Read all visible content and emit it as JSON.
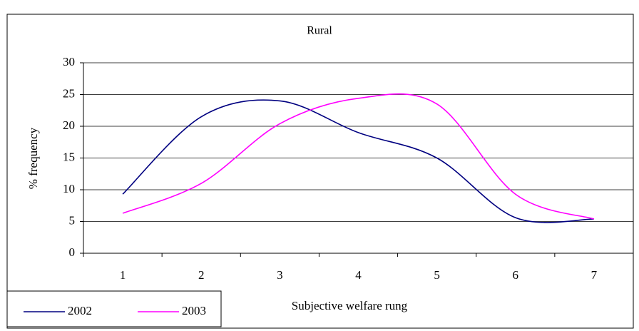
{
  "chart_data": {
    "type": "line",
    "title": "Rural",
    "x_label": "Subjective welfare rung",
    "y_label": "% frequency",
    "categories": [
      "1",
      "2",
      "3",
      "4",
      "5",
      "6",
      "7"
    ],
    "series": [
      {
        "name": "2002",
        "color": "#000080",
        "values": [
          9.3,
          21.5,
          24.0,
          19.0,
          15.0,
          5.6,
          5.4
        ]
      },
      {
        "name": "2003",
        "color": "#ff00ff",
        "values": [
          6.3,
          11.0,
          20.4,
          24.4,
          23.5,
          9.3,
          5.4
        ]
      }
    ],
    "ylim": [
      0,
      30
    ],
    "yticks": [
      0,
      5,
      10,
      15,
      20,
      25,
      30
    ],
    "grid": true,
    "legend": "bottom-left"
  }
}
